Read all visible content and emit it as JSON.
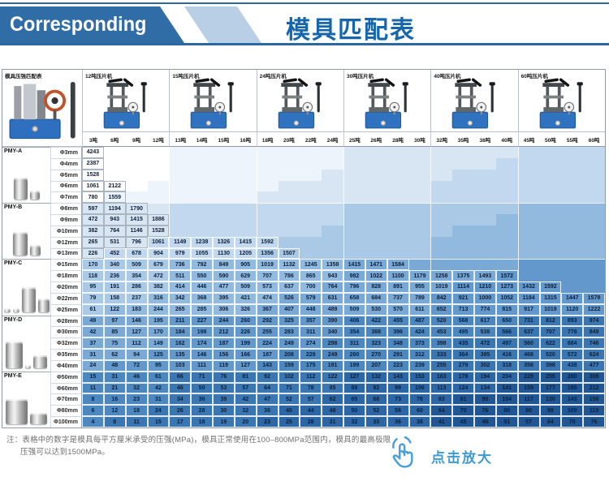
{
  "header": {
    "brand": "Corresponding",
    "title": "模具匹配表",
    "banner_color": "#306da6",
    "banner_tail_color": "#b9cfe5",
    "title_color": "#1566ac"
  },
  "table": {
    "corner_label": "模具压强匹配表",
    "unit": "MPa",
    "machines": [
      {
        "label": "12吨压片机",
        "tons": [
          "3吨",
          "6吨",
          "9吨",
          "12吨"
        ]
      },
      {
        "label": "15吨压片机",
        "tons": [
          "13吨",
          "14吨",
          "15吨",
          "16吨"
        ]
      },
      {
        "label": "24吨压片机",
        "tons": [
          "18吨",
          "20吨",
          "22吨",
          "24吨"
        ]
      },
      {
        "label": "30吨压片机",
        "tons": [
          "25吨",
          "26吨",
          "28吨",
          "30吨"
        ]
      },
      {
        "label": "40吨压片机",
        "tons": [
          "32吨",
          "35吨",
          "38吨",
          "40吨"
        ]
      },
      {
        "label": "60吨压片机",
        "tons": [
          "45吨",
          "50吨",
          "55吨",
          "60吨"
        ]
      }
    ],
    "groups": [
      {
        "name": "PMY-A",
        "rows": [
          {
            "diameter": "Φ3mm",
            "values": [
              4243
            ]
          },
          {
            "diameter": "Φ4mm",
            "values": [
              2387
            ]
          },
          {
            "diameter": "Φ5mm",
            "values": [
              1528
            ]
          },
          {
            "diameter": "Φ6mm",
            "values": [
              1061,
              2122
            ]
          },
          {
            "diameter": "Φ7mm",
            "values": [
              780,
              1559
            ]
          }
        ]
      },
      {
        "name": "PMY-B",
        "rows": [
          {
            "diameter": "Φ8mm",
            "values": [
              597,
              1194,
              1790
            ]
          },
          {
            "diameter": "Φ9mm",
            "values": [
              472,
              943,
              1415,
              1886
            ]
          },
          {
            "diameter": "Φ10mm",
            "values": [
              382,
              764,
              1146,
              1528
            ]
          },
          {
            "diameter": "Φ12mm",
            "values": [
              265,
              531,
              796,
              1061,
              1149,
              1238,
              1326,
              1415,
              1592
            ]
          },
          {
            "diameter": "Φ13mm",
            "values": [
              226,
              452,
              678,
              904,
              979,
              1055,
              1130,
              1205,
              1356,
              1507
            ]
          }
        ]
      },
      {
        "name": "PMY-C",
        "rows": [
          {
            "diameter": "Φ15mm",
            "values": [
              170,
              340,
              509,
              679,
              736,
              792,
              849,
              905,
              1019,
              1132,
              1245,
              1358,
              1415,
              1471,
              1584
            ]
          },
          {
            "diameter": "Φ18mm",
            "values": [
              118,
              236,
              354,
              472,
              511,
              550,
              590,
              629,
              707,
              786,
              865,
              943,
              982,
              1022,
              1100,
              1179,
              1258,
              1375,
              1493,
              1572
            ]
          },
          {
            "diameter": "Φ20mm",
            "values": [
              95,
              191,
              286,
              382,
              414,
              446,
              477,
              509,
              573,
              637,
              700,
              764,
              796,
              828,
              891,
              955,
              1019,
              1114,
              1210,
              1273,
              1432,
              1592
            ]
          },
          {
            "diameter": "Φ22mm",
            "values": [
              79,
              158,
              237,
              316,
              342,
              368,
              395,
              421,
              474,
              526,
              579,
              631,
              658,
              684,
              737,
              789,
              842,
              921,
              1000,
              1052,
              1184,
              1315,
              1447,
              1578
            ]
          },
          {
            "diameter": "Φ25mm",
            "values": [
              61,
              122,
              183,
              244,
              265,
              285,
              306,
              326,
              367,
              407,
              448,
              489,
              509,
              530,
              570,
              611,
              652,
              713,
              774,
              815,
              917,
              1019,
              1120,
              1222
            ]
          }
        ]
      },
      {
        "name": "PMY-D",
        "rows": [
          {
            "diameter": "Φ28mm",
            "values": [
              49,
              97,
              146,
              195,
              211,
              227,
              244,
              260,
              292,
              325,
              357,
              390,
              406,
              422,
              455,
              487,
              520,
              568,
              617,
              650,
              731,
              812,
              893,
              974
            ]
          },
          {
            "diameter": "Φ30mm",
            "values": [
              42,
              85,
              127,
              170,
              184,
              198,
              212,
              226,
              255,
              283,
              311,
              340,
              354,
              368,
              396,
              424,
              453,
              495,
              538,
              566,
              637,
              707,
              778,
              849
            ]
          },
          {
            "diameter": "Φ32mm",
            "values": [
              37,
              75,
              112,
              149,
              162,
              174,
              187,
              199,
              224,
              249,
              274,
              298,
              311,
              323,
              348,
              373,
              398,
              435,
              472,
              497,
              560,
              622,
              684,
              746
            ]
          },
          {
            "diameter": "Φ35mm",
            "values": [
              31,
              62,
              94,
              125,
              135,
              146,
              156,
              166,
              187,
              208,
              229,
              249,
              260,
              270,
              291,
              312,
              333,
              364,
              395,
              416,
              468,
              520,
              572,
              624
            ]
          },
          {
            "diameter": "Φ40mm",
            "values": [
              24,
              48,
              72,
              95,
              103,
              111,
              119,
              127,
              143,
              159,
              175,
              191,
              199,
              207,
              223,
              239,
              255,
              279,
              302,
              318,
              358,
              398,
              438,
              477
            ]
          }
        ]
      },
      {
        "name": "PMY-E",
        "rows": [
          {
            "diameter": "Φ50mm",
            "values": [
              15,
              31,
              46,
              61,
              66,
              71,
              76,
              81,
              92,
              102,
              112,
              122,
              127,
              132,
              143,
              153,
              163,
              178,
              194,
              204,
              229,
              255,
              280,
              306
            ]
          },
          {
            "diameter": "Φ60mm",
            "values": [
              11,
              21,
              32,
              42,
              46,
              50,
              53,
              57,
              64,
              71,
              78,
              85,
              88,
              92,
              99,
              106,
              113,
              124,
              134,
              141,
              159,
              177,
              195,
              212
            ]
          },
          {
            "diameter": "Φ70mm",
            "values": [
              8,
              16,
              23,
              31,
              34,
              36,
              39,
              42,
              47,
              52,
              57,
              62,
              65,
              68,
              73,
              78,
              83,
              91,
              99,
              104,
              117,
              130,
              143,
              156
            ]
          },
          {
            "diameter": "Φ80mm",
            "values": [
              6,
              12,
              18,
              24,
              26,
              28,
              30,
              32,
              36,
              40,
              44,
              48,
              50,
              52,
              56,
              60,
              64,
              70,
              76,
              80,
              90,
              99,
              109,
              119
            ]
          },
          {
            "diameter": "Φ100mm",
            "values": [
              4,
              8,
              11,
              15,
              17,
              18,
              19,
              20,
              23,
              25,
              28,
              31,
              32,
              33,
              36,
              38,
              41,
              45,
              48,
              51,
              57,
              64,
              70,
              76
            ]
          }
        ]
      }
    ],
    "palette": [
      "#ffffff",
      "#eef4fb",
      "#d8e6f4",
      "#c2d8ee",
      "#aac9e6",
      "#92b9de",
      "#7aa9d5",
      "#6298cb",
      "#4c87c0",
      "#3a76b2",
      "#2c66a4",
      "#215694",
      "#184a86"
    ]
  },
  "footer": {
    "note_line1": "注：表格中的数字是模具每平方厘米承受的压强(MPa)，模具正常使用在100–800MPa范围内，模具的最高极限",
    "note_line2": "压强可以达到1500MPa。",
    "zoom_label": "点击放大",
    "zoom_icon": "hand-click-icon",
    "zoom_color": "#3d9ad2"
  }
}
